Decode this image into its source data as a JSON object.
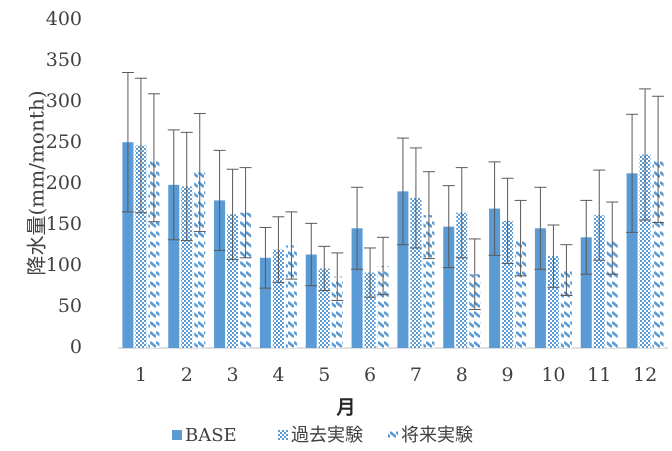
{
  "chart_data": {
    "type": "bar",
    "categories": [
      "1",
      "2",
      "3",
      "4",
      "5",
      "6",
      "7",
      "8",
      "9",
      "10",
      "11",
      "12"
    ],
    "series": [
      {
        "name": "BASE",
        "values": [
          251,
          199,
          180,
          110,
          114,
          146,
          191,
          148,
          170,
          146,
          135,
          213
        ],
        "err": [
          85,
          67,
          61,
          37,
          38,
          50,
          65,
          50,
          57,
          50,
          45,
          72
        ],
        "color": "#5b9bd5",
        "pattern": "solid"
      },
      {
        "name": "過去実験",
        "values": [
          247,
          197,
          163,
          120,
          97,
          92,
          183,
          165,
          155,
          112,
          162,
          236
        ],
        "err": [
          82,
          66,
          55,
          40,
          27,
          30,
          61,
          55,
          52,
          38,
          55,
          80
        ],
        "color": "#5b9bd5",
        "pattern": "dots"
      },
      {
        "name": "将来実験",
        "values": [
          232,
          214,
          165,
          125,
          87,
          100,
          162,
          90,
          134,
          95,
          134,
          230
        ],
        "err": [
          78,
          72,
          55,
          41,
          29,
          35,
          53,
          43,
          46,
          31,
          44,
          77
        ],
        "color": "#5b9bd5",
        "pattern": "dashes"
      }
    ],
    "xlabel": "月",
    "ylabel": "降水量(mm/month)",
    "yticks": [
      0,
      50,
      100,
      150,
      200,
      250,
      300,
      350,
      400
    ],
    "ylim": [
      0,
      400
    ],
    "grid": false,
    "legend": "bottom"
  }
}
